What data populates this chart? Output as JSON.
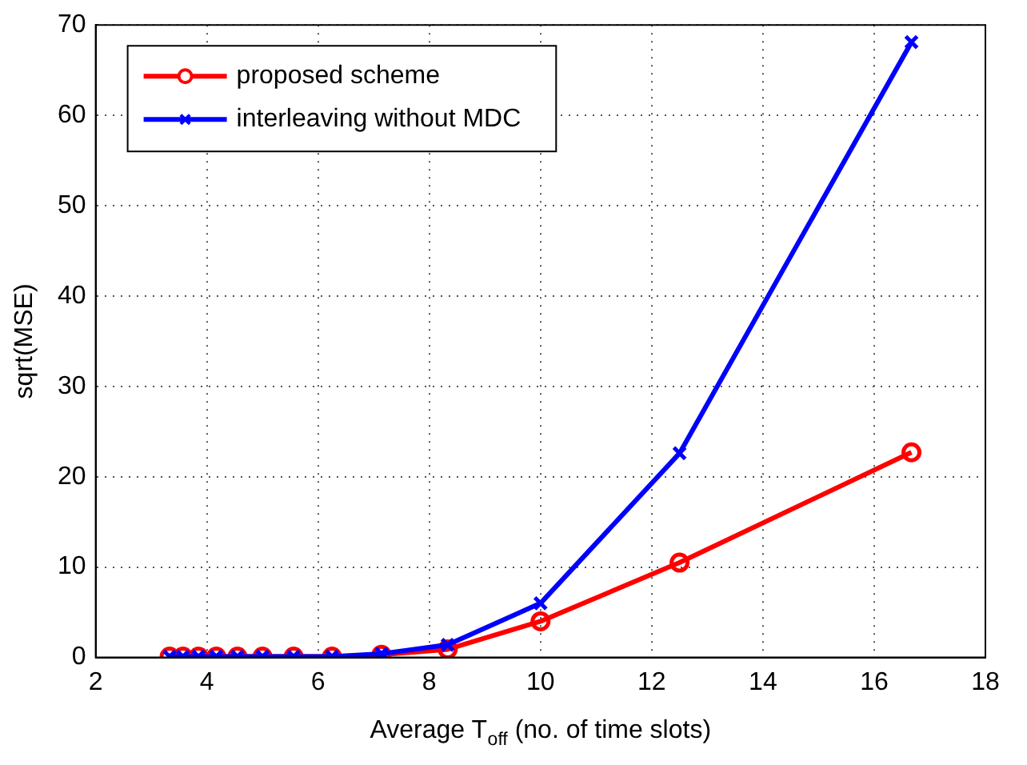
{
  "chart_data": {
    "type": "line",
    "xlabel": "Average T$_{off}$ (no. of time slots)",
    "ylabel": "sqrt(MSE)",
    "x": [
      3.33,
      3.57,
      3.85,
      4.17,
      4.55,
      5,
      5.56,
      6.25,
      7.14,
      8.33,
      10,
      12.5,
      16.67
    ],
    "series": [
      {
        "name": "proposed scheme",
        "color": "#ff0000",
        "marker": "circle",
        "values": [
          0.1,
          0.1,
          0.1,
          0.1,
          0.1,
          0.1,
          0.1,
          0.1,
          0.3,
          0.9,
          4.0,
          10.5,
          22.7
        ]
      },
      {
        "name": "interleaving without MDC",
        "color": "#0000ff",
        "marker": "cross",
        "values": [
          0.1,
          0.1,
          0.1,
          0.1,
          0.1,
          0.1,
          0.1,
          0.1,
          0.4,
          1.4,
          6.0,
          22.6,
          68.1
        ]
      }
    ],
    "xlim": [
      2,
      18
    ],
    "xticks": [
      2,
      4,
      6,
      8,
      10,
      12,
      14,
      16,
      18
    ],
    "ylim": [
      0,
      70
    ],
    "yticks": [
      0,
      10,
      20,
      30,
      40,
      50,
      60,
      70
    ],
    "grid": true,
    "legend": "top left",
    "line_style": "solid"
  }
}
